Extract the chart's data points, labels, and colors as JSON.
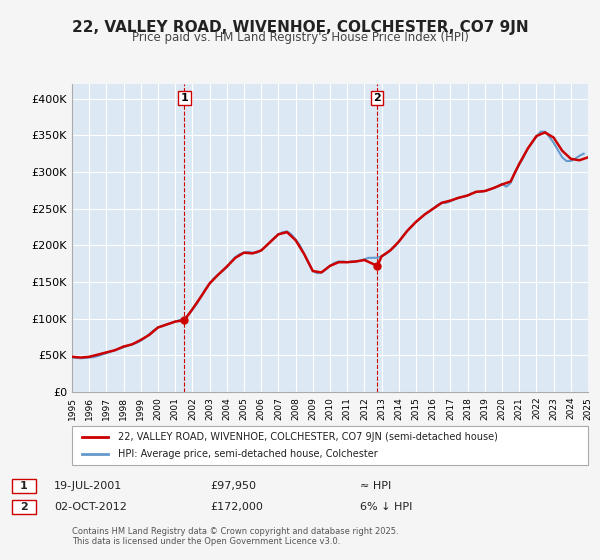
{
  "title": "22, VALLEY ROAD, WIVENHOE, COLCHESTER, CO7 9JN",
  "subtitle": "Price paid vs. HM Land Registry's House Price Index (HPI)",
  "background_color": "#dce9f5",
  "plot_bg_color": "#dce9f5",
  "ylabel_ticks": [
    "£0",
    "£50K",
    "£100K",
    "£150K",
    "£200K",
    "£250K",
    "£300K",
    "£350K",
    "£400K"
  ],
  "ytick_values": [
    0,
    50000,
    100000,
    150000,
    200000,
    250000,
    300000,
    350000,
    400000
  ],
  "ylim": [
    0,
    420000
  ],
  "line1_color": "#cc0000",
  "line2_color": "#6699cc",
  "vline_color": "#cc0000",
  "grid_color": "#ffffff",
  "legend_label1": "22, VALLEY ROAD, WIVENHOE, COLCHESTER, CO7 9JN (semi-detached house)",
  "legend_label2": "HPI: Average price, semi-detached house, Colchester",
  "sale1_year": 2001.54,
  "sale1_price": 97950,
  "sale1_label": "1",
  "sale2_year": 2012.75,
  "sale2_price": 172000,
  "sale2_label": "2",
  "annotation1": "19-JUL-2001    £97,950    ≈ HPI",
  "annotation2": "02-OCT-2012    £172,000    6% ↓ HPI",
  "footer": "Contains HM Land Registry data © Crown copyright and database right 2025.\nThis data is licensed under the Open Government Licence v3.0.",
  "hpi_data": {
    "years": [
      1995.0,
      1995.25,
      1995.5,
      1995.75,
      1996.0,
      1996.25,
      1996.5,
      1996.75,
      1997.0,
      1997.25,
      1997.5,
      1997.75,
      1998.0,
      1998.25,
      1998.5,
      1998.75,
      1999.0,
      1999.25,
      1999.5,
      1999.75,
      2000.0,
      2000.25,
      2000.5,
      2000.75,
      2001.0,
      2001.25,
      2001.5,
      2001.75,
      2002.0,
      2002.25,
      2002.5,
      2002.75,
      2003.0,
      2003.25,
      2003.5,
      2003.75,
      2004.0,
      2004.25,
      2004.5,
      2004.75,
      2005.0,
      2005.25,
      2005.5,
      2005.75,
      2006.0,
      2006.25,
      2006.5,
      2006.75,
      2007.0,
      2007.25,
      2007.5,
      2007.75,
      2008.0,
      2008.25,
      2008.5,
      2008.75,
      2009.0,
      2009.25,
      2009.5,
      2009.75,
      2010.0,
      2010.25,
      2010.5,
      2010.75,
      2011.0,
      2011.25,
      2011.5,
      2011.75,
      2012.0,
      2012.25,
      2012.5,
      2012.75,
      2013.0,
      2013.25,
      2013.5,
      2013.75,
      2014.0,
      2014.25,
      2014.5,
      2014.75,
      2015.0,
      2015.25,
      2015.5,
      2015.75,
      2016.0,
      2016.25,
      2016.5,
      2016.75,
      2017.0,
      2017.25,
      2017.5,
      2017.75,
      2018.0,
      2018.25,
      2018.5,
      2018.75,
      2019.0,
      2019.25,
      2019.5,
      2019.75,
      2020.0,
      2020.25,
      2020.5,
      2020.75,
      2021.0,
      2021.25,
      2021.5,
      2021.75,
      2022.0,
      2022.25,
      2022.5,
      2022.75,
      2023.0,
      2023.25,
      2023.5,
      2023.75,
      2024.0,
      2024.25,
      2024.5,
      2024.75
    ],
    "values": [
      47000,
      46500,
      46000,
      46500,
      47000,
      47500,
      49000,
      51000,
      53000,
      55000,
      57000,
      59000,
      61000,
      63000,
      65000,
      67000,
      70000,
      74000,
      79000,
      84000,
      88000,
      90000,
      92000,
      94000,
      96000,
      98000,
      100000,
      105000,
      112000,
      120000,
      130000,
      140000,
      148000,
      155000,
      160000,
      165000,
      170000,
      178000,
      184000,
      188000,
      190000,
      191000,
      190000,
      190000,
      193000,
      198000,
      204000,
      210000,
      215000,
      218000,
      219000,
      215000,
      208000,
      200000,
      188000,
      176000,
      165000,
      162000,
      163000,
      167000,
      172000,
      176000,
      178000,
      178000,
      177000,
      178000,
      178000,
      179000,
      181000,
      183000,
      183000,
      183000,
      185000,
      188000,
      193000,
      198000,
      205000,
      213000,
      220000,
      226000,
      232000,
      237000,
      242000,
      246000,
      250000,
      255000,
      258000,
      258000,
      260000,
      263000,
      265000,
      266000,
      268000,
      271000,
      273000,
      273000,
      274000,
      276000,
      278000,
      280000,
      284000,
      280000,
      285000,
      300000,
      310000,
      320000,
      332000,
      340000,
      348000,
      355000,
      355000,
      348000,
      340000,
      330000,
      320000,
      315000,
      315000,
      318000,
      322000,
      325000
    ]
  },
  "price_data": {
    "years": [
      1995.0,
      1995.5,
      1996.0,
      1997.0,
      1997.5,
      1998.0,
      1998.5,
      1999.0,
      1999.5,
      2000.0,
      2000.5,
      2001.0,
      2001.54,
      2002.0,
      2002.5,
      2003.0,
      2003.5,
      2004.0,
      2004.5,
      2005.0,
      2005.5,
      2006.0,
      2006.5,
      2007.0,
      2007.5,
      2008.0,
      2008.5,
      2009.0,
      2009.5,
      2010.0,
      2010.5,
      2011.0,
      2011.5,
      2012.0,
      2012.75,
      2013.0,
      2013.5,
      2014.0,
      2014.5,
      2015.0,
      2015.5,
      2016.0,
      2016.5,
      2017.0,
      2017.5,
      2018.0,
      2018.5,
      2019.0,
      2019.5,
      2020.0,
      2020.5,
      2021.0,
      2021.5,
      2022.0,
      2022.5,
      2023.0,
      2023.5,
      2024.0,
      2024.5,
      2025.0
    ],
    "values": [
      48000,
      47000,
      48000,
      54000,
      57000,
      62000,
      65000,
      71000,
      78000,
      88000,
      92000,
      96000,
      97950,
      113000,
      130000,
      148000,
      160000,
      171000,
      183000,
      190000,
      189000,
      193000,
      204000,
      215000,
      218000,
      207000,
      188000,
      165000,
      163000,
      172000,
      177000,
      177000,
      178000,
      180000,
      172000,
      185000,
      193000,
      205000,
      220000,
      232000,
      242000,
      250000,
      258000,
      261000,
      265000,
      268000,
      273000,
      274000,
      278000,
      283000,
      287000,
      311000,
      332000,
      349000,
      354000,
      347000,
      329000,
      318000,
      316000,
      320000
    ]
  }
}
